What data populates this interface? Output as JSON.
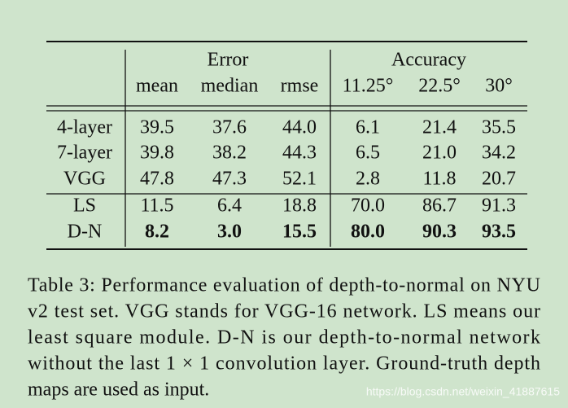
{
  "table": {
    "groups": [
      "Error",
      "Accuracy"
    ],
    "columns": [
      "mean",
      "median",
      "rmse",
      "11.25°",
      "22.5°",
      "30°"
    ],
    "rows": [
      {
        "label": "4-layer",
        "cells": [
          "39.5",
          "37.6",
          "44.0",
          "6.1",
          "21.4",
          "35.5"
        ]
      },
      {
        "label": "7-layer",
        "cells": [
          "39.8",
          "38.2",
          "44.3",
          "6.5",
          "21.0",
          "34.2"
        ]
      },
      {
        "label": "VGG",
        "cells": [
          "47.8",
          "47.3",
          "52.1",
          "2.8",
          "11.8",
          "20.7"
        ]
      },
      {
        "label": "LS",
        "cells": [
          "11.5",
          "6.4",
          "18.8",
          "70.0",
          "86.7",
          "91.3"
        ]
      },
      {
        "label": "D-N",
        "cells": [
          "8.2",
          "3.0",
          "15.5",
          "80.0",
          "90.3",
          "93.5"
        ],
        "bold": true
      }
    ]
  },
  "caption": {
    "lines": [
      "Table 3: Performance evaluation of depth-to-normal on NYU",
      "v2 test set. VGG stands for VGG-16 network. LS means our",
      "least square module. D-N is our depth-to-normal network",
      "without the last 1 × 1 convolution layer. Ground-truth depth",
      "maps are used as input."
    ]
  },
  "watermark": "https://blog.csdn.net/weixin_41887615"
}
